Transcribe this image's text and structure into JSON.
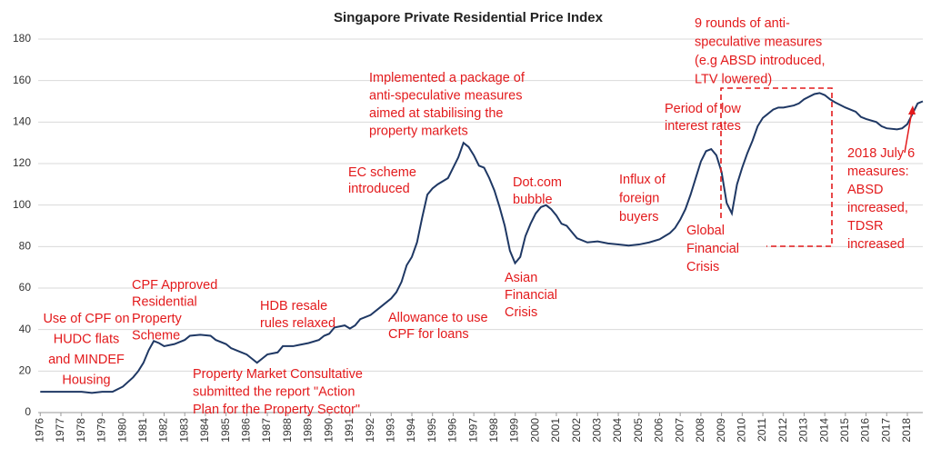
{
  "chart_data": {
    "type": "line",
    "title": "Singapore Private Residential Price Index",
    "x": [
      1976,
      1977,
      1978,
      1978.5,
      1979,
      1979.5,
      1980,
      1980.5,
      1980.75,
      1981,
      1981.25,
      1981.5,
      1981.75,
      1982,
      1982.5,
      1983,
      1983.25,
      1983.75,
      1984.25,
      1984.5,
      1985,
      1985.25,
      1985.75,
      1986,
      1986.25,
      1986.5,
      1986.75,
      1987,
      1987.5,
      1987.75,
      1988.25,
      1988.5,
      1989,
      1989.5,
      1989.75,
      1990,
      1990.25,
      1990.75,
      1991,
      1991.25,
      1991.5,
      1992,
      1992.5,
      1993,
      1993.25,
      1993.5,
      1993.75,
      1994,
      1994.25,
      1994.5,
      1994.75,
      1995,
      1995.25,
      1995.75,
      1996,
      1996.25,
      1996.5,
      1996.75,
      1997,
      1997.25,
      1997.5,
      1997.75,
      1998,
      1998.25,
      1998.5,
      1998.75,
      1999,
      1999.25,
      1999.5,
      1999.75,
      2000,
      2000.25,
      2000.5,
      2000.75,
      2001,
      2001.25,
      2001.5,
      2001.75,
      2002,
      2002.5,
      2003,
      2003.5,
      2004,
      2004.5,
      2005,
      2005.5,
      2006,
      2006.25,
      2006.5,
      2006.75,
      2007,
      2007.25,
      2007.5,
      2007.75,
      2008,
      2008.25,
      2008.5,
      2008.75,
      2009,
      2009.25,
      2009.5,
      2009.75,
      2010,
      2010.25,
      2010.5,
      2010.75,
      2011,
      2011.5,
      2011.75,
      2012,
      2012.5,
      2012.75,
      2013,
      2013.5,
      2013.75,
      2014,
      2014.25,
      2014.5,
      2015,
      2015.5,
      2015.75,
      2016,
      2016.5,
      2016.75,
      2017,
      2017.5,
      2017.75,
      2018,
      2018.25,
      2018.5,
      2018.75
    ],
    "series": [
      {
        "name": "Price Index",
        "color": "#1f3864",
        "values": [
          10,
          10,
          10,
          9.5,
          10,
          10,
          12.5,
          17,
          20,
          24,
          30,
          34.5,
          33.5,
          32,
          33,
          35,
          37,
          37.5,
          37,
          35,
          33,
          31,
          29,
          28,
          26,
          24,
          26,
          28,
          29,
          32,
          32,
          32.5,
          33.5,
          35,
          37,
          38,
          41,
          42,
          40.5,
          42,
          45,
          47,
          51,
          55,
          58,
          63,
          71,
          75,
          82,
          94,
          105,
          108,
          110,
          113,
          118,
          123,
          130,
          128,
          124,
          119,
          118,
          113,
          107,
          99,
          90,
          78,
          72,
          75,
          85,
          91,
          96,
          99,
          100,
          98,
          95,
          91,
          90,
          87,
          84,
          82,
          82.5,
          81.5,
          81,
          80.5,
          81,
          82,
          83.5,
          85,
          86.5,
          89,
          93,
          98,
          105,
          113,
          121,
          126,
          127,
          124,
          116,
          101,
          96,
          110,
          118,
          125,
          131,
          138,
          142,
          146,
          147,
          147,
          148,
          149,
          151,
          153.5,
          154,
          153,
          151,
          149.5,
          147,
          145,
          142.5,
          141.5,
          140,
          138,
          137,
          136.5,
          137,
          139,
          144,
          149,
          150
        ]
      }
    ],
    "xlim": [
      1975.9,
      2018.75
    ],
    "xticks": [
      1976,
      1977,
      1978,
      1979,
      1980,
      1981,
      1982,
      1983,
      1984,
      1985,
      1986,
      1987,
      1988,
      1989,
      1990,
      1991,
      1992,
      1993,
      1994,
      1995,
      1996,
      1997,
      1998,
      1999,
      2000,
      2001,
      2002,
      2003,
      2004,
      2005,
      2006,
      2007,
      2008,
      2009,
      2010,
      2011,
      2012,
      2013,
      2014,
      2015,
      2016,
      2017,
      2018
    ],
    "ylim": [
      0,
      180
    ],
    "yticks": [
      0,
      20,
      40,
      60,
      80,
      100,
      120,
      140,
      160,
      180
    ],
    "grid": true,
    "annotations": [
      {
        "lines": [
          "Use of CPF on",
          "HUDC flats",
          "and MINDEF",
          "Housing"
        ]
      },
      {
        "lines": [
          "CPF Approved",
          "Residential",
          "Property",
          "Scheme"
        ]
      },
      {
        "lines": [
          "HDB resale",
          "rules relaxed"
        ]
      },
      {
        "lines": [
          "Property Market Consultative",
          "submitted the report \"Action",
          "Plan for the Property Sector\""
        ]
      },
      {
        "lines": [
          "Allowance to use",
          "CPF for loans"
        ]
      },
      {
        "lines": [
          "EC scheme",
          "introduced"
        ]
      },
      {
        "lines": [
          "Implemented a package of",
          "anti-speculative measures",
          "aimed at stabilising the",
          "property markets"
        ]
      },
      {
        "lines": [
          "Dot.com",
          "bubble"
        ]
      },
      {
        "lines": [
          "Asian",
          "Financial",
          "Crisis"
        ]
      },
      {
        "lines": [
          "Influx of",
          "foreign",
          "buyers"
        ]
      },
      {
        "lines": [
          "Period of low",
          "interest rates"
        ]
      },
      {
        "lines": [
          "Global",
          "Financial",
          "Crisis"
        ]
      },
      {
        "lines": [
          "9 rounds of anti-",
          "speculative measures",
          "(e.g  ABSD introduced,",
          "LTV lowered)"
        ]
      },
      {
        "lines": [
          "2018 July 6",
          "measures:",
          "ABSD",
          "increased,",
          "TDSR",
          "increased"
        ]
      }
    ]
  }
}
